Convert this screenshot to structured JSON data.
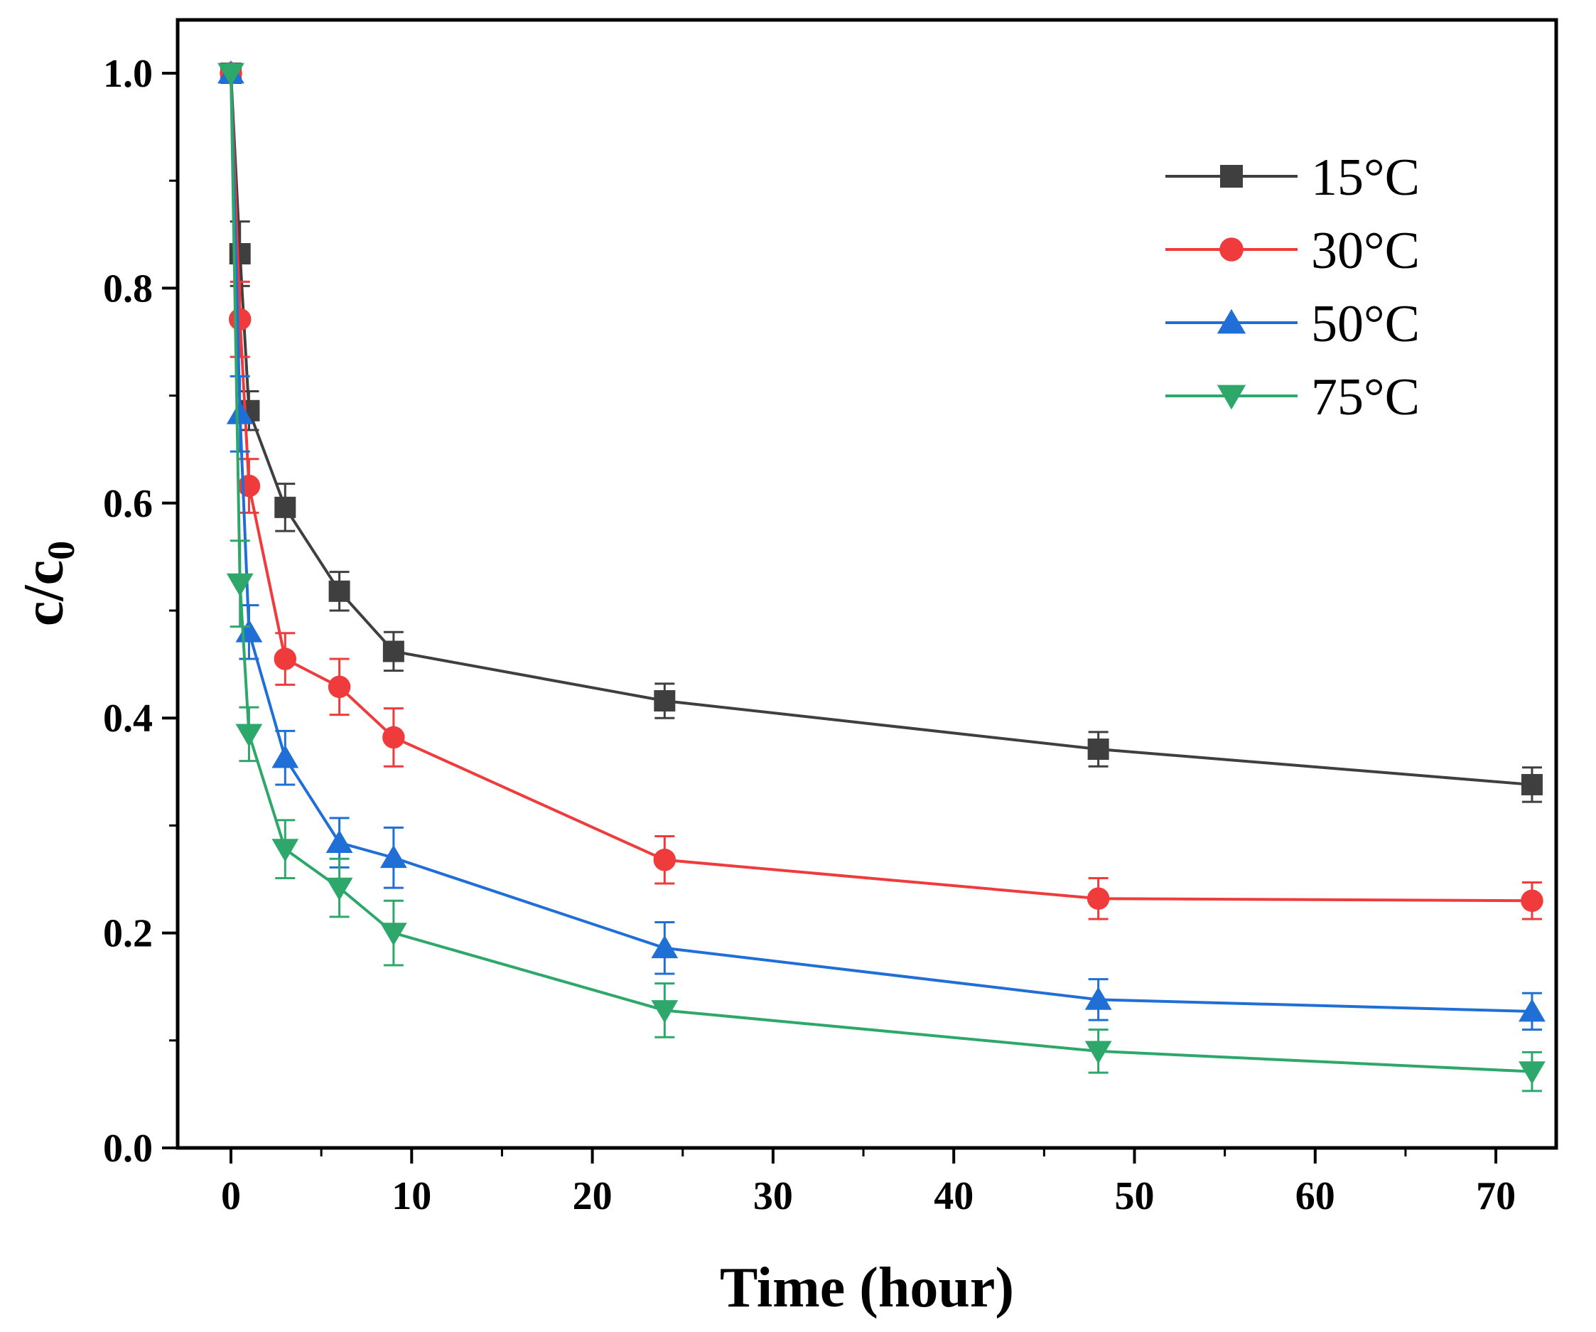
{
  "chart_data": {
    "type": "line",
    "title": "",
    "xlabel": "Time (hour)",
    "ylabel": "c/c",
    "ylabel_subscript": "0",
    "xlim": [
      -3,
      74
    ],
    "ylim": [
      0.0,
      1.05
    ],
    "x_ticks": [
      0,
      10,
      20,
      30,
      40,
      50,
      60,
      70
    ],
    "x_tick_labels": [
      "0",
      "10",
      "20",
      "30",
      "40",
      "50",
      "60",
      "70"
    ],
    "y_ticks": [
      0.0,
      0.2,
      0.4,
      0.6,
      0.8,
      1.0
    ],
    "y_tick_labels": [
      "0.0",
      "0.2",
      "0.4",
      "0.6",
      "0.8",
      "1.0"
    ],
    "x_minor_step": 5,
    "y_minor_step": 0.1,
    "grid": false,
    "legend_position": "top-right",
    "x": [
      0,
      0.5,
      1,
      3,
      6,
      9,
      24,
      48,
      72
    ],
    "series": [
      {
        "name": "15°C",
        "color": "#3f3f3f",
        "marker": "square",
        "values": [
          1.0,
          0.832,
          0.686,
          0.596,
          0.518,
          0.462,
          0.416,
          0.371,
          0.338
        ],
        "errors": [
          0.0,
          0.03,
          0.018,
          0.022,
          0.018,
          0.018,
          0.016,
          0.016,
          0.016
        ]
      },
      {
        "name": "30°C",
        "color": "#ef3b3b",
        "marker": "circle",
        "values": [
          1.0,
          0.771,
          0.616,
          0.455,
          0.429,
          0.382,
          0.268,
          0.232,
          0.23
        ],
        "errors": [
          0.0,
          0.035,
          0.025,
          0.024,
          0.026,
          0.027,
          0.022,
          0.019,
          0.017
        ]
      },
      {
        "name": "50°C",
        "color": "#1f6fd6",
        "marker": "triangle-up",
        "values": [
          1.0,
          0.683,
          0.48,
          0.363,
          0.284,
          0.27,
          0.186,
          0.138,
          0.127
        ],
        "errors": [
          0.0,
          0.035,
          0.025,
          0.025,
          0.023,
          0.028,
          0.024,
          0.019,
          0.017
        ]
      },
      {
        "name": "75°C",
        "color": "#2ea86a",
        "marker": "triangle-down",
        "values": [
          1.0,
          0.525,
          0.385,
          0.278,
          0.242,
          0.2,
          0.128,
          0.09,
          0.071
        ],
        "errors": [
          0.0,
          0.04,
          0.025,
          0.027,
          0.027,
          0.03,
          0.025,
          0.02,
          0.018
        ]
      }
    ]
  }
}
